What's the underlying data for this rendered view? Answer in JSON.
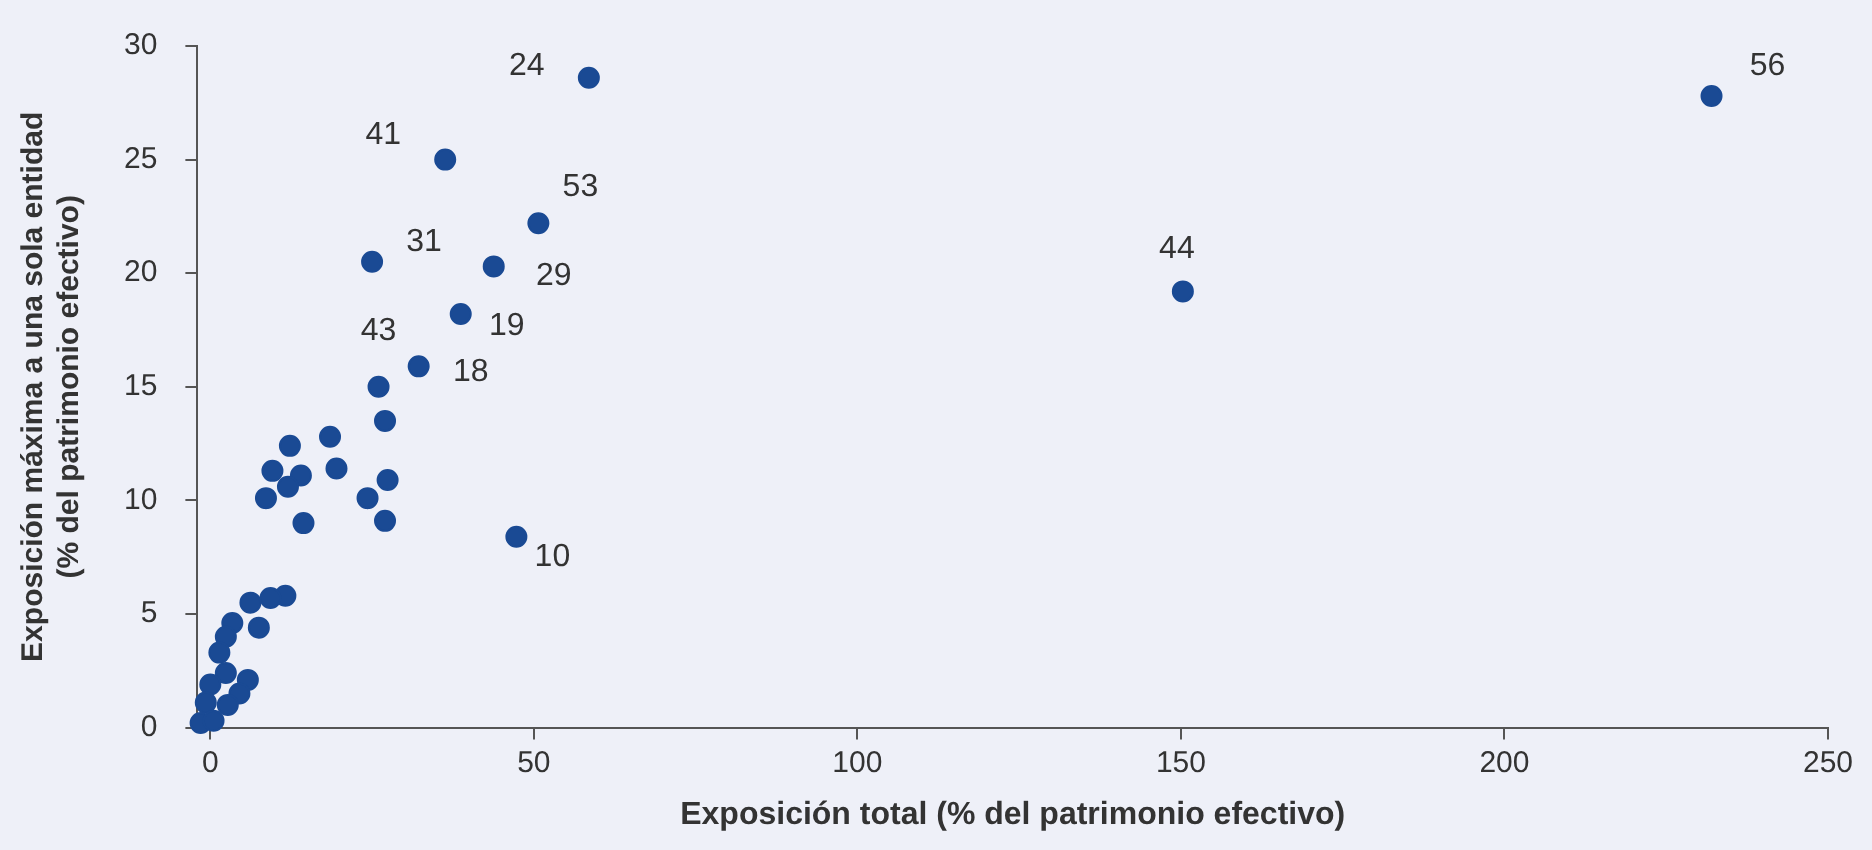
{
  "chart_data": {
    "type": "scatter",
    "xlabel": "Exposición total (% del patrimonio efectivo)",
    "ylabel": "Exposición máxima a una sola entidad (% del patrimonio efectivo)",
    "xlim": [
      -2,
      250
    ],
    "xticks": [
      0,
      50,
      100,
      150,
      200,
      250
    ],
    "ylim": [
      0,
      30
    ],
    "yticks": [
      0,
      5,
      10,
      15,
      20,
      25,
      30
    ],
    "grid": false,
    "legend": false,
    "marker": "circle",
    "series": [
      {
        "color": "#1a4a94",
        "x": [
          58.5,
          36.3,
          50.7,
          25.0,
          43.8,
          38.7,
          32.2,
          26,
          27,
          18.5,
          12.3,
          19.5,
          9.6,
          14,
          27.4,
          12,
          8.6,
          24.3,
          14.4,
          27,
          47.3,
          11.6,
          9.3,
          6.2,
          7.5,
          3.4,
          2.4,
          1.4,
          5.8,
          2.4,
          0,
          4.5,
          -0.7,
          2.7,
          -1.5,
          0.5,
          150.3,
          232
        ],
        "values": [
          28.6,
          25.0,
          22.2,
          20.5,
          20.3,
          18.2,
          15.9,
          15.0,
          13.5,
          12.8,
          12.4,
          11.4,
          11.3,
          11.1,
          10.9,
          10.6,
          10.1,
          10.1,
          9.0,
          9.1,
          8.4,
          5.8,
          5.7,
          5.5,
          4.4,
          4.6,
          4.0,
          3.3,
          2.1,
          2.4,
          1.9,
          1.5,
          1.1,
          1.0,
          0.2,
          0.3,
          19.2,
          27.8
        ]
      }
    ],
    "annotations": [
      {
        "text": "24",
        "x": 58.5,
        "y": 28.6
      },
      {
        "text": "41",
        "x": 36.3,
        "y": 25.0
      },
      {
        "text": "53",
        "x": 50.7,
        "y": 22.2
      },
      {
        "text": "31",
        "x": 25.0,
        "y": 20.5
      },
      {
        "text": "29",
        "x": 43.8,
        "y": 20.3
      },
      {
        "text": "19",
        "x": 38.7,
        "y": 18.2
      },
      {
        "text": "43",
        "x": 26,
        "y": 15.0
      },
      {
        "text": "18",
        "x": 32.2,
        "y": 15.9
      },
      {
        "text": "10",
        "x": 47.3,
        "y": 8.4
      },
      {
        "text": "44",
        "x": 150.3,
        "y": 19.2
      },
      {
        "text": "56",
        "x": 232,
        "y": 27.8
      }
    ]
  }
}
